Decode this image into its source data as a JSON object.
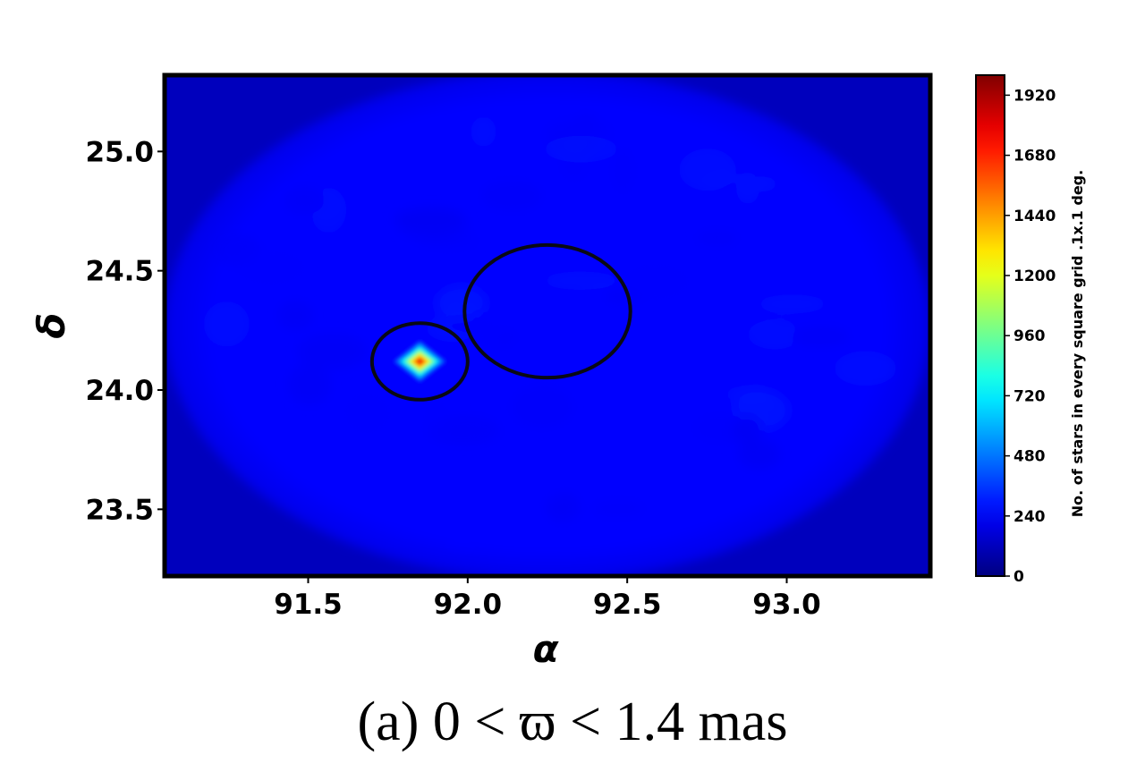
{
  "chart_data": {
    "type": "heatmap",
    "xlabel": "α",
    "ylabel": "δ",
    "xlim": [
      91.05,
      93.45
    ],
    "ylim": [
      23.22,
      25.32
    ],
    "x_ticks": [
      {
        "value": 91.5,
        "label": "91.5"
      },
      {
        "value": 92.0,
        "label": "92.0"
      },
      {
        "value": 92.5,
        "label": "92.5"
      },
      {
        "value": 93.0,
        "label": "93.0"
      }
    ],
    "y_ticks": [
      {
        "value": 23.5,
        "label": "23.5"
      },
      {
        "value": 24.0,
        "label": "24.0"
      },
      {
        "value": 24.5,
        "label": "24.5"
      },
      {
        "value": 25.0,
        "label": "25.0"
      }
    ],
    "colorbar": {
      "label": "No. of stars in every square grid .1x.1 deg.",
      "range": [
        0,
        2000
      ],
      "ticks": [
        {
          "value": 0,
          "label": "0"
        },
        {
          "value": 240,
          "label": "240"
        },
        {
          "value": 480,
          "label": "480"
        },
        {
          "value": 720,
          "label": "720"
        },
        {
          "value": 960,
          "label": "960"
        },
        {
          "value": 1200,
          "label": "1200"
        },
        {
          "value": 1440,
          "label": "1440"
        },
        {
          "value": 1680,
          "label": "1680"
        },
        {
          "value": 1920,
          "label": "1920"
        }
      ],
      "colormap": "jet"
    },
    "background_level": 260,
    "field_ellipse": {
      "center": [
        92.25,
        24.27
      ],
      "radius_x": 1.2,
      "radius_y": 1.07
    },
    "peak": {
      "center": [
        91.85,
        24.12
      ],
      "value": 2000,
      "half_width": 0.09
    },
    "circles": [
      {
        "center": [
          91.85,
          24.12
        ],
        "radius": 0.15
      },
      {
        "center": [
          92.25,
          24.33
        ],
        "radius": 0.26
      }
    ]
  },
  "caption": "(a) 0 < ϖ < 1.4 mas"
}
